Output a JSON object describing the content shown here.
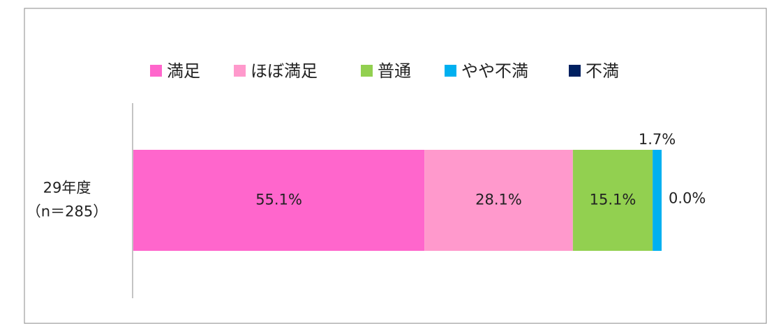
{
  "chart_data": {
    "type": "stacked_bar_horizontal",
    "categories": [
      [
        "29年度",
        "（n＝285）"
      ]
    ],
    "xlim": [
      0,
      100
    ],
    "series": [
      {
        "name": "満足",
        "color": "#ff66cc",
        "values": [
          55.1
        ],
        "value_labels": [
          "55.1%"
        ]
      },
      {
        "name": "ほぼ満足",
        "color": "#ff99cc",
        "values": [
          28.1
        ],
        "value_labels": [
          "28.1%"
        ]
      },
      {
        "name": "普通",
        "color": "#92d050",
        "values": [
          15.1
        ],
        "value_labels": [
          "15.1%"
        ]
      },
      {
        "name": "やや不満",
        "color": "#00b0f0",
        "values": [
          1.7
        ],
        "value_labels": [
          "1.7%"
        ]
      },
      {
        "name": "不満",
        "color": "#002060",
        "values": [
          0.0
        ],
        "value_labels": [
          "0.0%"
        ]
      }
    ],
    "legend": "top"
  }
}
